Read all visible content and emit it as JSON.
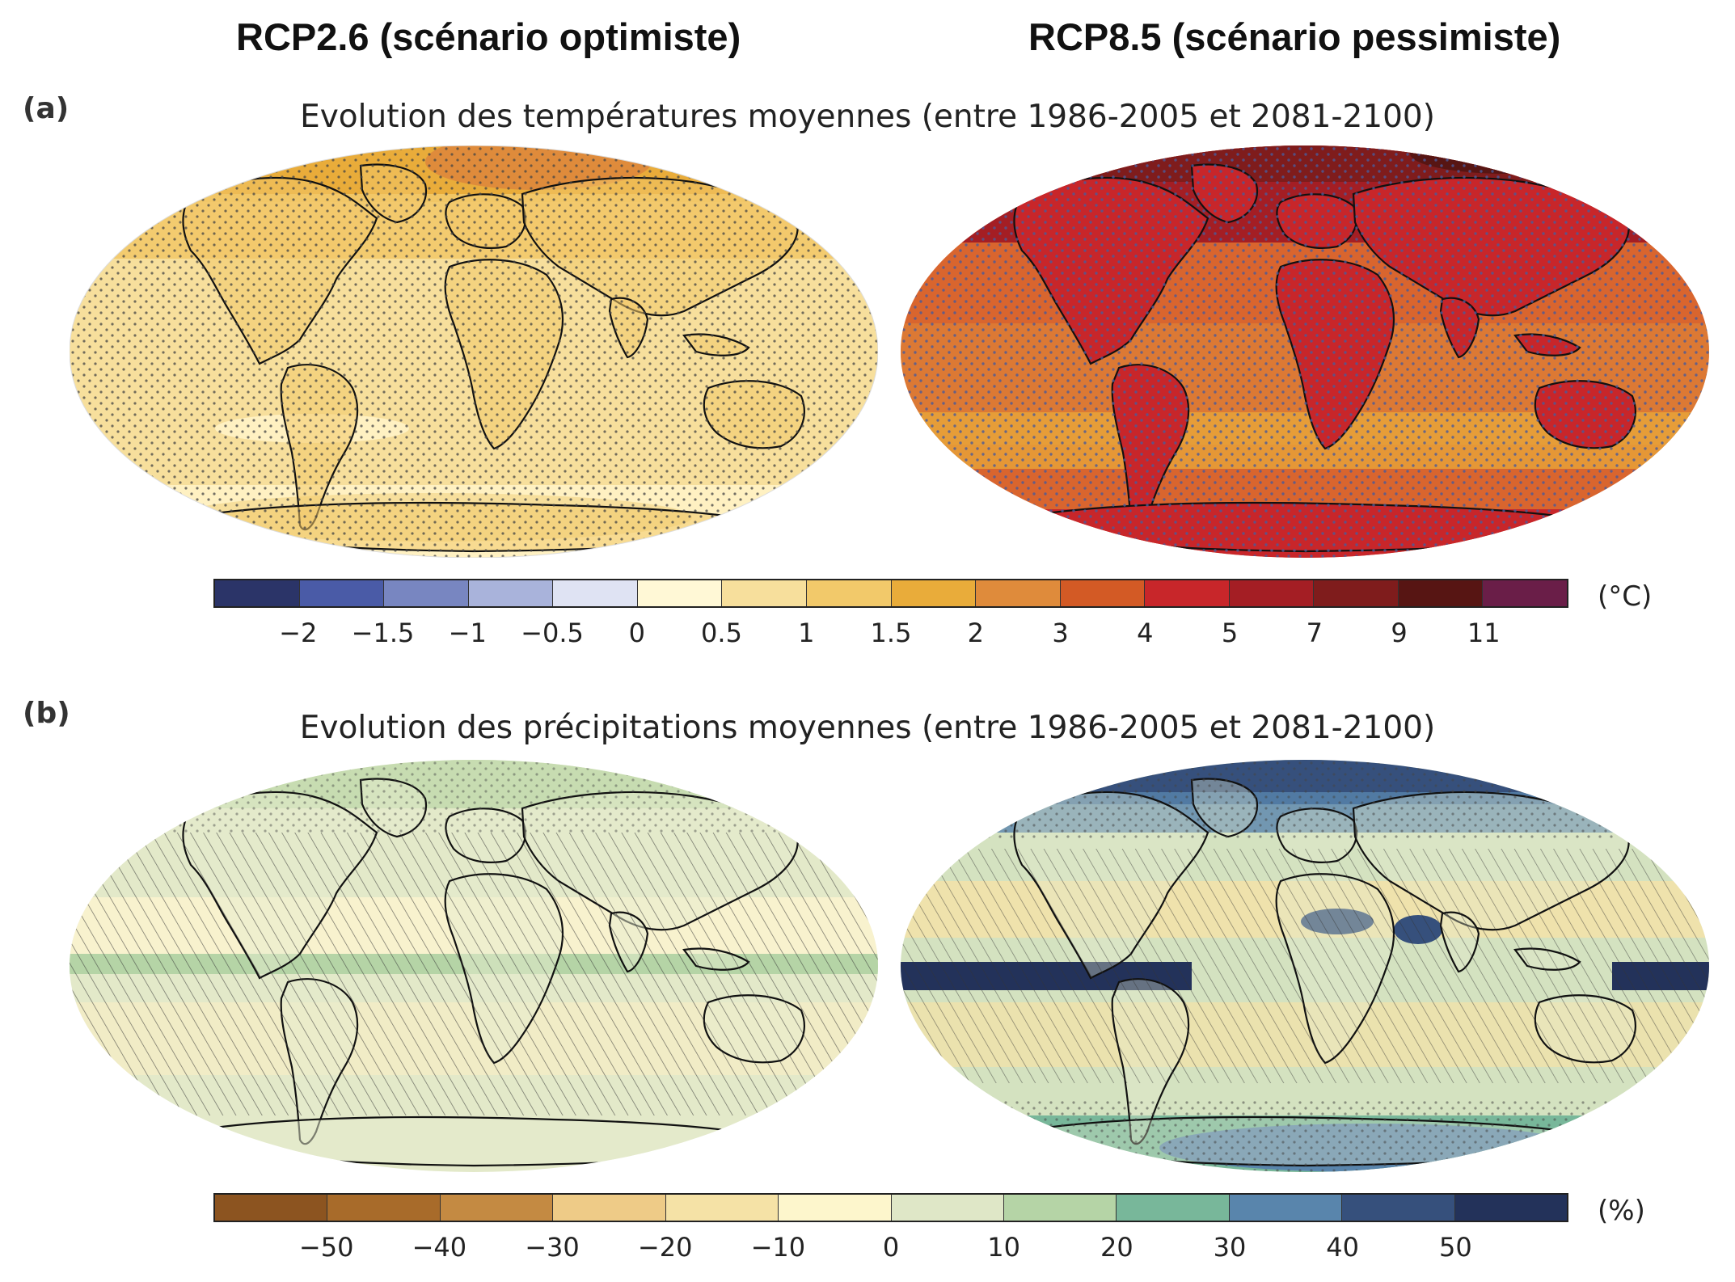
{
  "columns": {
    "left": "RCP2.6 (scénario optimiste)",
    "right": "RCP8.5 (scénario pessimiste)"
  },
  "panels": {
    "a": {
      "label": "(a)",
      "title": "Evolution des températures moyennes (entre 1986-2005 et 2081-2100)",
      "unit": "(°C)",
      "colorbar": {
        "colors": [
          "#2b3468",
          "#4a5ba7",
          "#7886c1",
          "#a9b3db",
          "#dfe3f3",
          "#fff8d6",
          "#f7df9c",
          "#f2c96a",
          "#e9ac3a",
          "#df8b3b",
          "#d35a25",
          "#c8262a",
          "#a41e24",
          "#7f1c1c",
          "#571513",
          "#6a1e48"
        ],
        "ticks": [
          "−2",
          "−1.5",
          "−1",
          "−0.5",
          "0",
          "0.5",
          "1",
          "1.5",
          "2",
          "3",
          "4",
          "5",
          "7",
          "9",
          "11"
        ]
      },
      "maps": {
        "left": {
          "scenario": "RCP2.6",
          "base_color": "#f7dd9c"
        },
        "right": {
          "scenario": "RCP8.5",
          "base_color": "#d9652e"
        }
      }
    },
    "b": {
      "label": "(b)",
      "title": "Evolution des précipitations moyennes (entre 1986-2005 et 2081-2100)",
      "unit": "(%)",
      "colorbar": {
        "colors": [
          "#8c5420",
          "#a86b2a",
          "#c48a42",
          "#eecb87",
          "#f5e2a6",
          "#fdf6cc",
          "#dfe7c7",
          "#b5d4a6",
          "#78b79a",
          "#5985ac",
          "#36507c",
          "#23325a"
        ],
        "ticks": [
          "−50",
          "−40",
          "−30",
          "−20",
          "−10",
          "0",
          "10",
          "20",
          "30",
          "40",
          "50"
        ]
      },
      "maps": {
        "left": {
          "scenario": "RCP2.6",
          "base_color": "#e3e9c9"
        },
        "right": {
          "scenario": "RCP8.5",
          "base_color": "#d4e2c0"
        }
      }
    }
  }
}
